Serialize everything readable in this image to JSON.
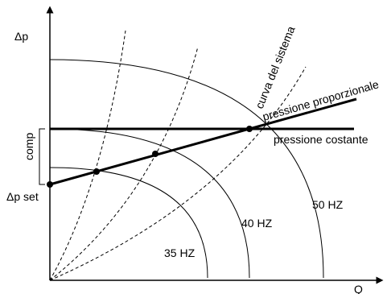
{
  "axes": {
    "y_label": "Δp",
    "x_label": "Q"
  },
  "labels": {
    "comp": "comp",
    "dp_set": "Δp set",
    "curve_system": "curva del sistema",
    "proportional": "pressione proporzionale",
    "constant": "pressione costante"
  },
  "frequency_curves": [
    "35 HZ",
    "40 HZ",
    "50 HZ"
  ],
  "colors": {
    "line": "#000000",
    "background": "#ffffff"
  }
}
